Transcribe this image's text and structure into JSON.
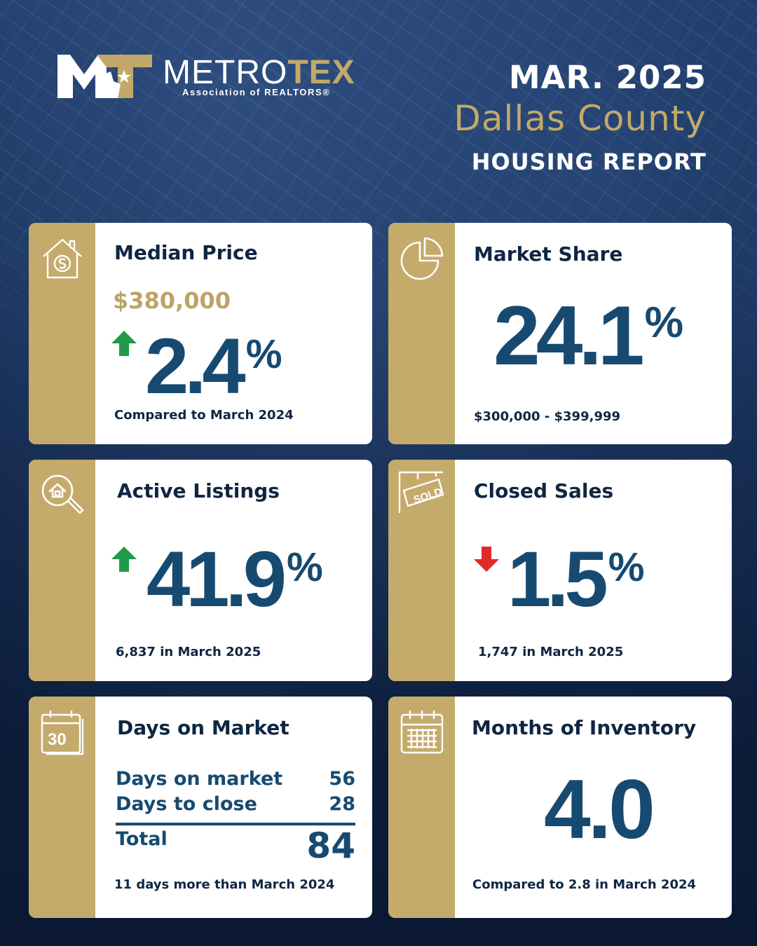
{
  "header": {
    "logo_word_a": "METRO",
    "logo_word_b": "TEX",
    "logo_sub": "Association of REALTORS®",
    "month": "MAR. 2025",
    "county": "Dallas County",
    "report": "HOUSING REPORT"
  },
  "colors": {
    "navy": "#0c1a33",
    "gold": "#c4ab6c",
    "stat_blue": "#174a70",
    "up_green": "#1f9a4a",
    "down_red": "#e02b2b"
  },
  "cards": {
    "median_price": {
      "icon": "house-dollar-icon",
      "title": "Median Price",
      "price": "$380,000",
      "direction": "up",
      "value": "2.4",
      "unit": "%",
      "note": "Compared to March 2024"
    },
    "market_share": {
      "icon": "pie-chart-icon",
      "title": "Market Share",
      "value": "24.1",
      "unit": "%",
      "note": "$300,000 - $399,999"
    },
    "active_listings": {
      "icon": "house-search-icon",
      "title": "Active Listings",
      "direction": "up",
      "value": "41.9",
      "unit": "%",
      "note": "6,837 in March 2025"
    },
    "closed_sales": {
      "icon": "sold-sign-icon",
      "title": "Closed Sales",
      "direction": "down",
      "value": "1.5",
      "unit": "%",
      "note": "1,747 in March 2025"
    },
    "days_on_market": {
      "icon": "calendar-30-icon",
      "title": "Days on Market",
      "rows": [
        {
          "label": "Days on market",
          "value": "56"
        },
        {
          "label": "Days to close",
          "value": "28"
        }
      ],
      "total_label": "Total",
      "total_value": "84",
      "note": "11 days more than March 2024"
    },
    "months_inventory": {
      "icon": "calendar-grid-icon",
      "title": "Months of Inventory",
      "value": "4.0",
      "note": "Compared to 2.8 in March 2024"
    }
  }
}
